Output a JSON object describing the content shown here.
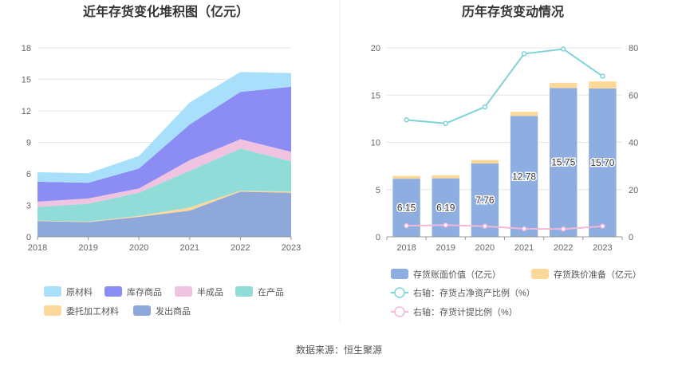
{
  "source_label": "数据来源：恒生聚源",
  "chart_data": [
    {
      "type": "area",
      "stacked": true,
      "title": "近年存货变化堆积图（亿元）",
      "x": [
        "2018",
        "2019",
        "2020",
        "2021",
        "2022",
        "2023"
      ],
      "ylim": [
        0,
        18
      ],
      "yticks": [
        "0",
        "3",
        "6",
        "9",
        "12",
        "15",
        "18"
      ],
      "grid": true,
      "legend_position": "bottom",
      "series": [
        {
          "name": "发出商品",
          "color": "#8fa8dc",
          "values": [
            1.5,
            1.4,
            1.9,
            2.5,
            4.3,
            4.2
          ]
        },
        {
          "name": "委托加工材料",
          "color": "#fcd89a",
          "values": [
            0.05,
            0.05,
            0.1,
            0.3,
            0.1,
            0.1
          ]
        },
        {
          "name": "在产品",
          "color": "#8fdcd9",
          "values": [
            1.3,
            1.7,
            2.2,
            3.5,
            4.0,
            2.9
          ]
        },
        {
          "name": "半成品",
          "color": "#f0c4e0",
          "values": [
            0.5,
            0.5,
            0.4,
            1.0,
            0.9,
            0.9
          ]
        },
        {
          "name": "库存商品",
          "color": "#8c8cf5",
          "values": [
            1.9,
            1.5,
            1.9,
            3.4,
            4.5,
            6.2
          ]
        },
        {
          "name": "原材料",
          "color": "#a8e0fb",
          "values": [
            0.9,
            0.9,
            1.2,
            2.1,
            1.9,
            1.3
          ]
        }
      ],
      "legend_order": [
        "原材料",
        "库存商品",
        "半成品",
        "在产品",
        "委托加工材料",
        "发出商品"
      ]
    },
    {
      "type": "bar",
      "stacked": true,
      "title": "历年存货变动情况",
      "categories": [
        "2018",
        "2019",
        "2020",
        "2021",
        "2022",
        "2023"
      ],
      "ylim": [
        0,
        20
      ],
      "yticks": [
        "0",
        "5",
        "10",
        "15",
        "20"
      ],
      "y2lim": [
        0,
        80
      ],
      "y2ticks": [
        "0",
        "20",
        "40",
        "60",
        "80"
      ],
      "grid": true,
      "legend_position": "bottom",
      "series": [
        {
          "name": "存货账面价值（亿元）",
          "color": "#8eade0",
          "values": [
            6.15,
            6.19,
            7.76,
            12.78,
            15.75,
            15.7
          ],
          "labels": [
            "6.15",
            "6.19",
            "7.76",
            "12.78",
            "15.75",
            "15.70"
          ]
        },
        {
          "name": "存货跌价准备（亿元）",
          "color": "#fdd999",
          "values": [
            0.3,
            0.33,
            0.37,
            0.45,
            0.55,
            0.75
          ]
        }
      ],
      "lines": [
        {
          "name": "右轴：存货占净资产比例（%）",
          "color": "#7fd3da",
          "values": [
            49.5,
            48,
            55,
            77.5,
            79.5,
            68
          ]
        },
        {
          "name": "右轴：存货计提比例（%）",
          "color": "#f2b8d8",
          "values": [
            4.7,
            5.0,
            4.5,
            3.4,
            3.3,
            4.5
          ]
        }
      ]
    }
  ]
}
